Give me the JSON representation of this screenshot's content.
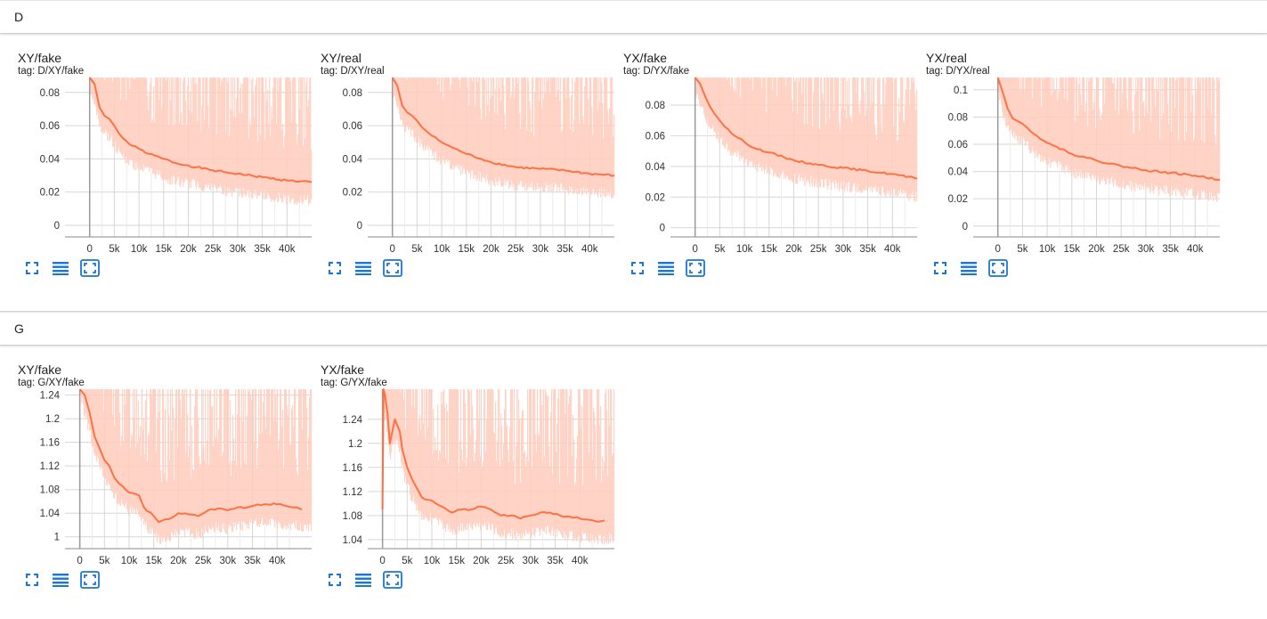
{
  "colors": {
    "line": "#ff7043",
    "band": "#ffccbc",
    "icon": "#1976d2",
    "grid": "#d6d6d6"
  },
  "icons": [
    "fit-to-screen-icon",
    "toggle-log-scale-icon",
    "fit-domain-icon"
  ],
  "sections": [
    {
      "name": "D",
      "cards": [
        {
          "title": "XY/fake",
          "tag": "tag: D/XY/fake",
          "chart_data": {
            "type": "line",
            "title": "XY/fake",
            "xlabel": "",
            "ylabel": "",
            "xlim": [
              -5000,
              45000
            ],
            "ylim": [
              -0.007,
              0.089
            ],
            "x_ticks": [
              0,
              5000,
              10000,
              15000,
              20000,
              25000,
              30000,
              35000,
              40000
            ],
            "x_tick_labels": [
              "0",
              "5k",
              "10k",
              "15k",
              "20k",
              "25k",
              "30k",
              "35k",
              "40k"
            ],
            "y_ticks": [
              0,
              0.02,
              0.04,
              0.06,
              0.08
            ],
            "y_tick_labels": [
              "0",
              "0.02",
              "0.04",
              "0.06",
              "0.08"
            ],
            "grid": true,
            "series": [
              {
                "x": [
                  0,
                  1000,
                  2000,
                  3000,
                  4000,
                  5000,
                  6000,
                  8000,
                  10000,
                  12000,
                  15000,
                  18000,
                  20000,
                  25000,
                  30000,
                  35000,
                  40000,
                  45000
                ],
                "values": [
                  0.09,
                  0.085,
                  0.071,
                  0.066,
                  0.064,
                  0.06,
                  0.055,
                  0.049,
                  0.046,
                  0.043,
                  0.04,
                  0.037,
                  0.036,
                  0.033,
                  0.031,
                  0.029,
                  0.027,
                  0.026
                ]
              }
            ]
          }
        },
        {
          "title": "XY/real",
          "tag": "tag: D/XY/real",
          "chart_data": {
            "type": "line",
            "title": "XY/real",
            "xlabel": "",
            "ylabel": "",
            "xlim": [
              -5000,
              45000
            ],
            "ylim": [
              -0.007,
              0.089
            ],
            "x_ticks": [
              0,
              5000,
              10000,
              15000,
              20000,
              25000,
              30000,
              35000,
              40000
            ],
            "x_tick_labels": [
              "0",
              "5k",
              "10k",
              "15k",
              "20k",
              "25k",
              "30k",
              "35k",
              "40k"
            ],
            "y_ticks": [
              0,
              0.02,
              0.04,
              0.06,
              0.08
            ],
            "y_tick_labels": [
              "0",
              "0.02",
              "0.04",
              "0.06",
              "0.08"
            ],
            "grid": true,
            "series": [
              {
                "x": [
                  0,
                  1000,
                  2000,
                  3000,
                  4000,
                  5000,
                  6000,
                  8000,
                  10000,
                  12000,
                  15000,
                  18000,
                  20000,
                  25000,
                  30000,
                  35000,
                  40000,
                  45000
                ],
                "values": [
                  0.09,
                  0.084,
                  0.072,
                  0.068,
                  0.066,
                  0.063,
                  0.059,
                  0.054,
                  0.05,
                  0.047,
                  0.043,
                  0.04,
                  0.038,
                  0.035,
                  0.034,
                  0.033,
                  0.031,
                  0.03
                ]
              }
            ]
          }
        },
        {
          "title": "YX/fake",
          "tag": "tag: D/YX/fake",
          "chart_data": {
            "type": "line",
            "title": "YX/fake",
            "xlabel": "",
            "ylabel": "",
            "xlim": [
              -5000,
              45000
            ],
            "ylim": [
              -0.006,
              0.098
            ],
            "x_ticks": [
              0,
              5000,
              10000,
              15000,
              20000,
              25000,
              30000,
              35000,
              40000
            ],
            "x_tick_labels": [
              "0",
              "5k",
              "10k",
              "15k",
              "20k",
              "25k",
              "30k",
              "35k",
              "40k"
            ],
            "y_ticks": [
              0,
              0.02,
              0.04,
              0.06,
              0.08
            ],
            "y_tick_labels": [
              "0",
              "0.02",
              "0.04",
              "0.06",
              "0.08"
            ],
            "grid": true,
            "series": [
              {
                "x": [
                  0,
                  1000,
                  2000,
                  3000,
                  4000,
                  5000,
                  6000,
                  8000,
                  10000,
                  12000,
                  15000,
                  18000,
                  20000,
                  25000,
                  30000,
                  35000,
                  40000,
                  45000
                ],
                "values": [
                  0.1,
                  0.094,
                  0.086,
                  0.079,
                  0.074,
                  0.07,
                  0.066,
                  0.06,
                  0.056,
                  0.052,
                  0.049,
                  0.046,
                  0.044,
                  0.041,
                  0.039,
                  0.037,
                  0.035,
                  0.032
                ]
              }
            ]
          }
        },
        {
          "title": "YX/real",
          "tag": "tag: D/YX/real",
          "chart_data": {
            "type": "line",
            "title": "YX/real",
            "xlabel": "",
            "ylabel": "",
            "xlim": [
              -5000,
              45000
            ],
            "ylim": [
              -0.008,
              0.109
            ],
            "x_ticks": [
              0,
              5000,
              10000,
              15000,
              20000,
              25000,
              30000,
              35000,
              40000
            ],
            "x_tick_labels": [
              "0",
              "5k",
              "10k",
              "15k",
              "20k",
              "25k",
              "30k",
              "35k",
              "40k"
            ],
            "y_ticks": [
              0,
              0.02,
              0.04,
              0.06,
              0.08,
              0.1
            ],
            "y_tick_labels": [
              "0",
              "0.02",
              "0.04",
              "0.06",
              "0.08",
              "0.1"
            ],
            "grid": true,
            "series": [
              {
                "x": [
                  0,
                  1000,
                  2000,
                  3000,
                  4000,
                  5000,
                  6000,
                  8000,
                  10000,
                  12000,
                  15000,
                  18000,
                  20000,
                  25000,
                  30000,
                  35000,
                  40000,
                  45000
                ],
                "values": [
                  0.11,
                  0.098,
                  0.086,
                  0.079,
                  0.077,
                  0.075,
                  0.072,
                  0.066,
                  0.061,
                  0.058,
                  0.053,
                  0.05,
                  0.048,
                  0.044,
                  0.041,
                  0.039,
                  0.037,
                  0.034
                ]
              }
            ]
          }
        }
      ]
    },
    {
      "name": "G",
      "cards": [
        {
          "title": "XY/fake",
          "tag": "tag: G/XY/fake",
          "chart_data": {
            "type": "line",
            "title": "XY/fake",
            "xlabel": "",
            "ylabel": "",
            "xlim": [
              -3000,
              47000
            ],
            "ylim": [
              0.98,
              1.25
            ],
            "x_ticks": [
              0,
              5000,
              10000,
              15000,
              20000,
              25000,
              30000,
              35000,
              40000
            ],
            "x_tick_labels": [
              "0",
              "5k",
              "10k",
              "15k",
              "20k",
              "25k",
              "30k",
              "35k",
              "40k"
            ],
            "y_ticks": [
              1,
              1.04,
              1.08,
              1.12,
              1.16,
              1.2,
              1.24
            ],
            "y_tick_labels": [
              "1",
              "1.04",
              "1.08",
              "1.12",
              "1.16",
              "1.2",
              "1.24"
            ],
            "grid": true,
            "series": [
              {
                "x": [
                  0,
                  1000,
                  2000,
                  3000,
                  4000,
                  5000,
                  6000,
                  7000,
                  8000,
                  10000,
                  12000,
                  13000,
                  15000,
                  16000,
                  18000,
                  20000,
                  22000,
                  24000,
                  26000,
                  28000,
                  30000,
                  32000,
                  34000,
                  36000,
                  38000,
                  40000,
                  42000,
                  44000,
                  45000
                ],
                "values": [
                  1.28,
                  1.24,
                  1.21,
                  1.17,
                  1.15,
                  1.13,
                  1.12,
                  1.1,
                  1.09,
                  1.075,
                  1.07,
                  1.05,
                  1.035,
                  1.025,
                  1.03,
                  1.04,
                  1.038,
                  1.035,
                  1.045,
                  1.048,
                  1.045,
                  1.05,
                  1.05,
                  1.055,
                  1.055,
                  1.055,
                  1.052,
                  1.05,
                  1.046
                ]
              }
            ]
          }
        },
        {
          "title": "YX/fake",
          "tag": "tag: G/YX/fake",
          "chart_data": {
            "type": "line",
            "title": "YX/fake",
            "xlabel": "",
            "ylabel": "",
            "xlim": [
              -3000,
              47000
            ],
            "ylim": [
              1.025,
              1.29
            ],
            "x_ticks": [
              0,
              5000,
              10000,
              15000,
              20000,
              25000,
              30000,
              35000,
              40000
            ],
            "x_tick_labels": [
              "0",
              "5k",
              "10k",
              "15k",
              "20k",
              "25k",
              "30k",
              "35k",
              "40k"
            ],
            "y_ticks": [
              1.04,
              1.08,
              1.12,
              1.16,
              1.2,
              1.24
            ],
            "y_tick_labels": [
              "1.04",
              "1.08",
              "1.12",
              "1.16",
              "1.2",
              "1.24"
            ],
            "grid": true,
            "series": [
              {
                "x": [
                  0,
                  200,
                  500,
                  1000,
                  1500,
                  2000,
                  2500,
                  3000,
                  3500,
                  4000,
                  5000,
                  6000,
                  7000,
                  8000,
                  10000,
                  12000,
                  14000,
                  16000,
                  18000,
                  20000,
                  22000,
                  24000,
                  26000,
                  28000,
                  30000,
                  32000,
                  34000,
                  36000,
                  38000,
                  40000,
                  42000,
                  44000,
                  45000
                ],
                "values": [
                  1.09,
                  1.3,
                  1.28,
                  1.25,
                  1.2,
                  1.22,
                  1.24,
                  1.23,
                  1.22,
                  1.19,
                  1.16,
                  1.14,
                  1.125,
                  1.11,
                  1.105,
                  1.095,
                  1.085,
                  1.09,
                  1.09,
                  1.095,
                  1.09,
                  1.08,
                  1.08,
                  1.075,
                  1.08,
                  1.085,
                  1.085,
                  1.08,
                  1.078,
                  1.075,
                  1.073,
                  1.07,
                  1.072
                ]
              }
            ]
          }
        }
      ]
    }
  ]
}
